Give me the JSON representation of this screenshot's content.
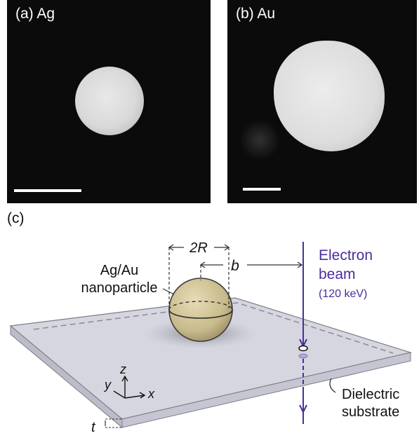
{
  "panels": {
    "a": {
      "label": "(a) Ag"
    },
    "b": {
      "label": "(b) Au"
    }
  },
  "diagram": {
    "label": "(c)",
    "particle_label_line1": "Ag/Au",
    "particle_label_line2": "nanoparticle",
    "diameter_label": "2R",
    "impact_label": "b",
    "beam_line1": "Electron",
    "beam_line2": "beam",
    "beam_energy": "(120 keV)",
    "substrate_line1": "Dielectric",
    "substrate_line2": "substrate",
    "axis_x": "x",
    "axis_y": "y",
    "axis_z": "z",
    "thickness_label": "t"
  },
  "colors": {
    "beam": "#4b2e9a",
    "substrate": "#d6d6e0",
    "particle": "#c9bd92"
  }
}
